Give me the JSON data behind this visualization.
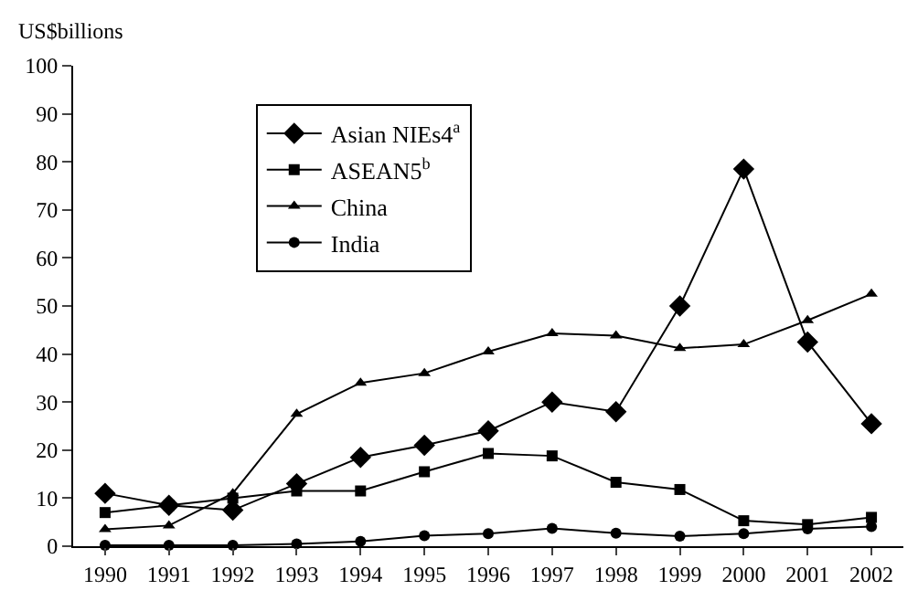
{
  "chart_data": {
    "type": "line",
    "ylabel": "US$billions",
    "categories": [
      "1990",
      "1991",
      "1992",
      "1993",
      "1994",
      "1995",
      "1996",
      "1997",
      "1998",
      "1999",
      "2000",
      "2001",
      "2002"
    ],
    "series": [
      {
        "name": "Asian NIEs4$^{a}$",
        "color": "#000000",
        "marker": "diamond",
        "values": [
          11,
          8.5,
          7.5,
          13,
          18.5,
          21,
          24,
          30,
          28,
          50,
          78.5,
          42.5,
          25.5
        ]
      },
      {
        "name": "ASEAN5$^{b}$",
        "color": "#000000",
        "marker": "square",
        "values": [
          7,
          8.5,
          10,
          11.5,
          11.5,
          15.5,
          19.3,
          18.8,
          13.3,
          11.8,
          5.3,
          4.5,
          6
        ]
      },
      {
        "name": "China",
        "color": "#000000",
        "marker": "triangle",
        "values": [
          3.5,
          4.3,
          11,
          27.5,
          34,
          36,
          40.5,
          44.3,
          43.8,
          41.2,
          42,
          47,
          52.5
        ]
      },
      {
        "name": "India",
        "color": "#000000",
        "marker": "circle",
        "values": [
          0.2,
          0.2,
          0.2,
          0.5,
          1,
          2.2,
          2.6,
          3.7,
          2.7,
          2.1,
          2.6,
          3.6,
          4.1
        ]
      }
    ],
    "ylim": [
      0,
      100
    ],
    "yticks": [
      0,
      10,
      20,
      30,
      40,
      50,
      60,
      70,
      80,
      90,
      100
    ],
    "grid": false,
    "legend": "top",
    "line_style": "solid"
  }
}
